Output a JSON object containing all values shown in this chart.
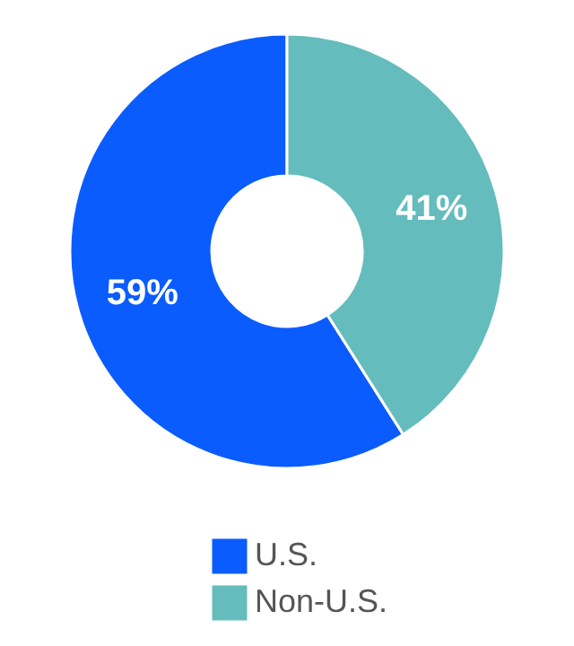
{
  "chart_data": {
    "type": "donut",
    "categories": [
      "U.S.",
      "Non-U.S."
    ],
    "values": [
      59,
      41
    ],
    "colors": [
      "#0a5cff",
      "#65bcbc"
    ],
    "value_labels": [
      "59%",
      "41%"
    ],
    "legend": "bottom"
  }
}
